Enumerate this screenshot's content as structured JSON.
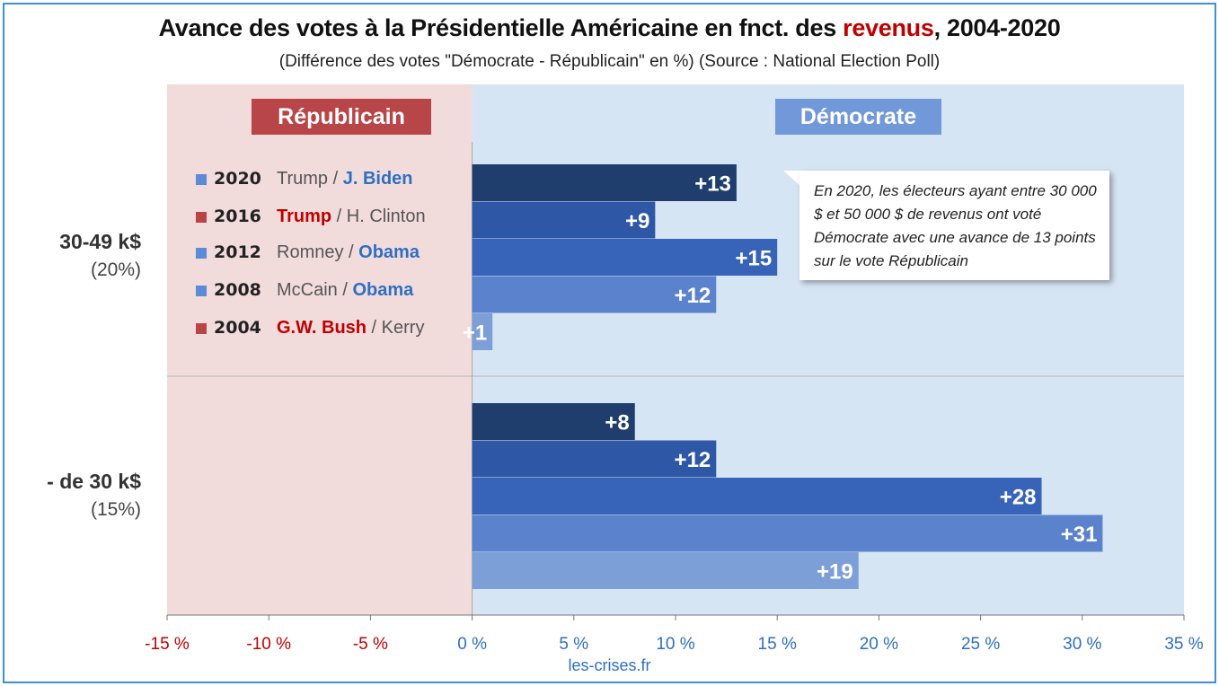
{
  "title": {
    "before": "Avance des votes à la Présidentielle Américaine en fnct. des ",
    "highlight": "revenus",
    "after": ", 2004-2020"
  },
  "subtitle": "(Différence des votes \"Démocrate - Républicain\" en %) (Source : National Election Poll)",
  "badges": {
    "republicain": "Républicain",
    "democrate": "Démocrate"
  },
  "legend": [
    {
      "year": "2020",
      "rep": "Trump",
      "dem": "J. Biden",
      "winner": "dem",
      "color": "#5b8ad6"
    },
    {
      "year": "2016",
      "rep": "Trump",
      "dem": "H. Clinton",
      "winner": "rep",
      "color": "#b84547"
    },
    {
      "year": "2012",
      "rep": "Romney",
      "dem": "Obama",
      "winner": "dem",
      "color": "#5b8ad6"
    },
    {
      "year": "2008",
      "rep": "McCain",
      "dem": "Obama",
      "winner": "dem",
      "color": "#5b8ad6"
    },
    {
      "year": "2004",
      "rep": "G.W. Bush",
      "dem": "Kerry",
      "winner": "rep",
      "color": "#b84547"
    }
  ],
  "groups_text": [
    {
      "label": "30-49 k$",
      "share": "(20%)"
    },
    {
      "label": "- de 30 k$",
      "share": "(15%)"
    }
  ],
  "callout": "En 2020, les électeurs ayant entre 30 000 $ et 50 000 $ de revenus ont voté Démocrate avec une avance de 13 points sur le vote Républicain",
  "source": "les-crises.fr",
  "colors": {
    "rep_bg": "#f2dcdb",
    "dem_bg": "#d6e5f3",
    "bar_2020": "#1f3e6e",
    "bar_2016": "#2e58a6",
    "bar_2012": "#3763b8",
    "bar_2008": "#5b82cc",
    "bar_2004": "#7d9fd8",
    "negative_tick": "#c00000",
    "positive_tick": "#2e6fc2"
  },
  "chart_data": {
    "type": "bar",
    "orientation": "horizontal",
    "xlim": [
      -15,
      35
    ],
    "x_ticks": [
      -15,
      -10,
      -5,
      0,
      5,
      10,
      15,
      20,
      25,
      30,
      35
    ],
    "x_tick_labels": [
      "-15 %",
      "-10 %",
      "-5 %",
      "0 %",
      "5 %",
      "10 %",
      "15 %",
      "20 %",
      "25 %",
      "30 %",
      "35 %"
    ],
    "groups": [
      {
        "label": "30-49 k$",
        "share": "(20%)",
        "bars": [
          {
            "year": "2020",
            "value": 13,
            "label": "+13"
          },
          {
            "year": "2016",
            "value": 9,
            "label": "+9"
          },
          {
            "year": "2012",
            "value": 15,
            "label": "+15"
          },
          {
            "year": "2008",
            "value": 12,
            "label": "+12"
          },
          {
            "year": "2004",
            "value": 1,
            "label": "+1"
          }
        ]
      },
      {
        "label": "- de 30 k$",
        "share": "(15%)",
        "bars": [
          {
            "year": "2020",
            "value": 8,
            "label": "+8"
          },
          {
            "year": "2016",
            "value": 12,
            "label": "+12"
          },
          {
            "year": "2012",
            "value": 28,
            "label": "+28"
          },
          {
            "year": "2008",
            "value": 31,
            "label": "+31"
          },
          {
            "year": "2004",
            "value": 19,
            "label": "+19"
          }
        ]
      }
    ]
  }
}
